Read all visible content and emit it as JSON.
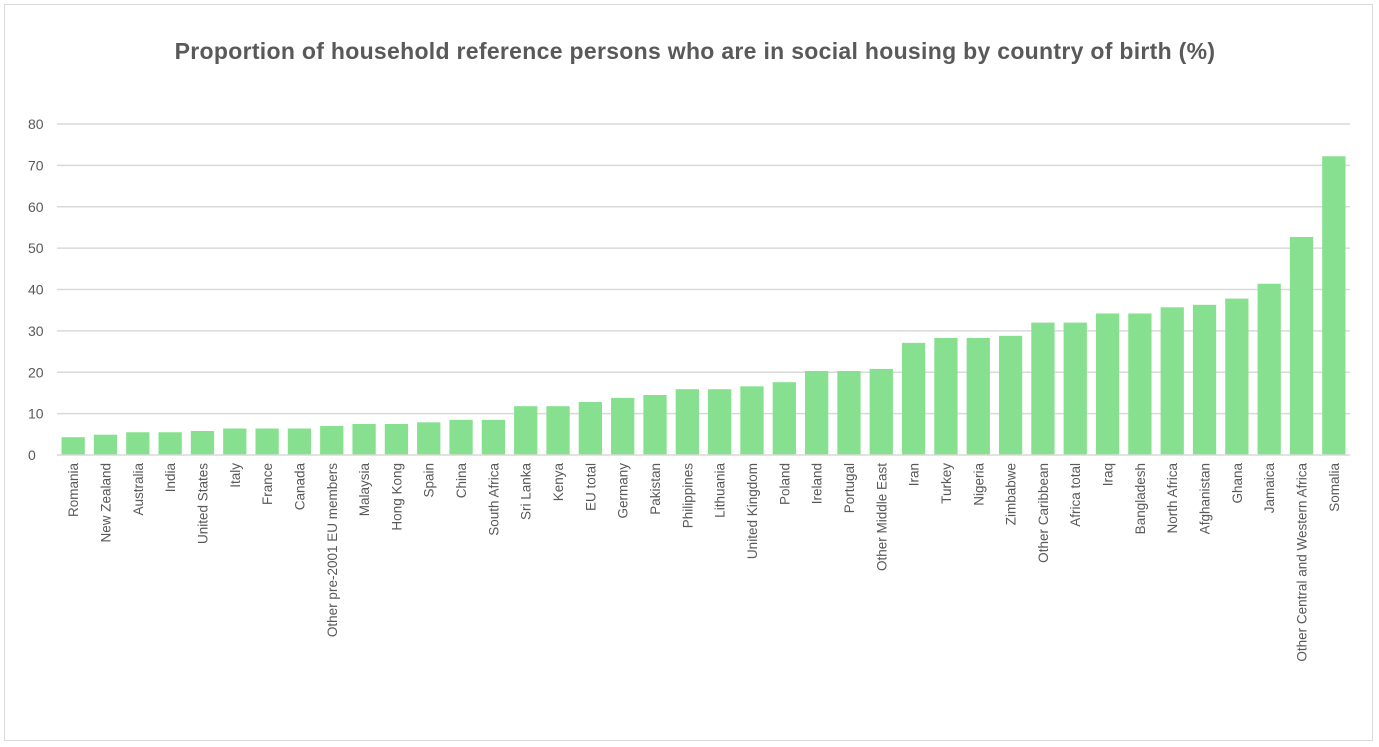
{
  "chart_data": {
    "type": "bar",
    "title": "Proportion of household  reference persons who are in social housing by country of birth (%)",
    "xlabel": "",
    "ylabel": "",
    "ylim": [
      0,
      80
    ],
    "yticks": [
      0,
      10,
      20,
      30,
      40,
      50,
      60,
      70,
      80
    ],
    "grid": true,
    "legend": "none",
    "bar_color": "#86e08f",
    "categories": [
      "Romania",
      "New Zealand",
      "Australia",
      "India",
      "United States",
      "Italy",
      "France",
      "Canada",
      "Other pre-2001 EU members",
      "Malaysia",
      "Hong Kong",
      "Spain",
      "China",
      "South Africa",
      "Sri Lanka",
      "Kenya",
      "EU total",
      "Germany",
      "Pakistan",
      "Philippines",
      "Lithuania",
      "United Kingdom",
      "Poland",
      "Ireland",
      "Portugal",
      "Other Middle East",
      "Iran",
      "Turkey",
      "Nigeria",
      "Zimbabwe",
      "Other Caribbean",
      "Africa total",
      "Iraq",
      "Bangladesh",
      "North Africa",
      "Afghanistan",
      "Ghana",
      "Jamaica",
      "Other Central and Western Africa",
      "Somalia"
    ],
    "values": [
      4.3,
      4.9,
      5.5,
      5.5,
      5.8,
      6.4,
      6.4,
      6.4,
      7.0,
      7.5,
      7.5,
      7.9,
      8.5,
      8.5,
      11.8,
      11.8,
      12.8,
      13.8,
      14.5,
      15.9,
      15.9,
      16.6,
      17.6,
      20.3,
      20.3,
      20.8,
      27.1,
      28.3,
      28.3,
      28.8,
      32.0,
      32.0,
      34.2,
      34.2,
      35.7,
      36.3,
      37.8,
      41.4,
      52.7,
      72.2
    ]
  }
}
